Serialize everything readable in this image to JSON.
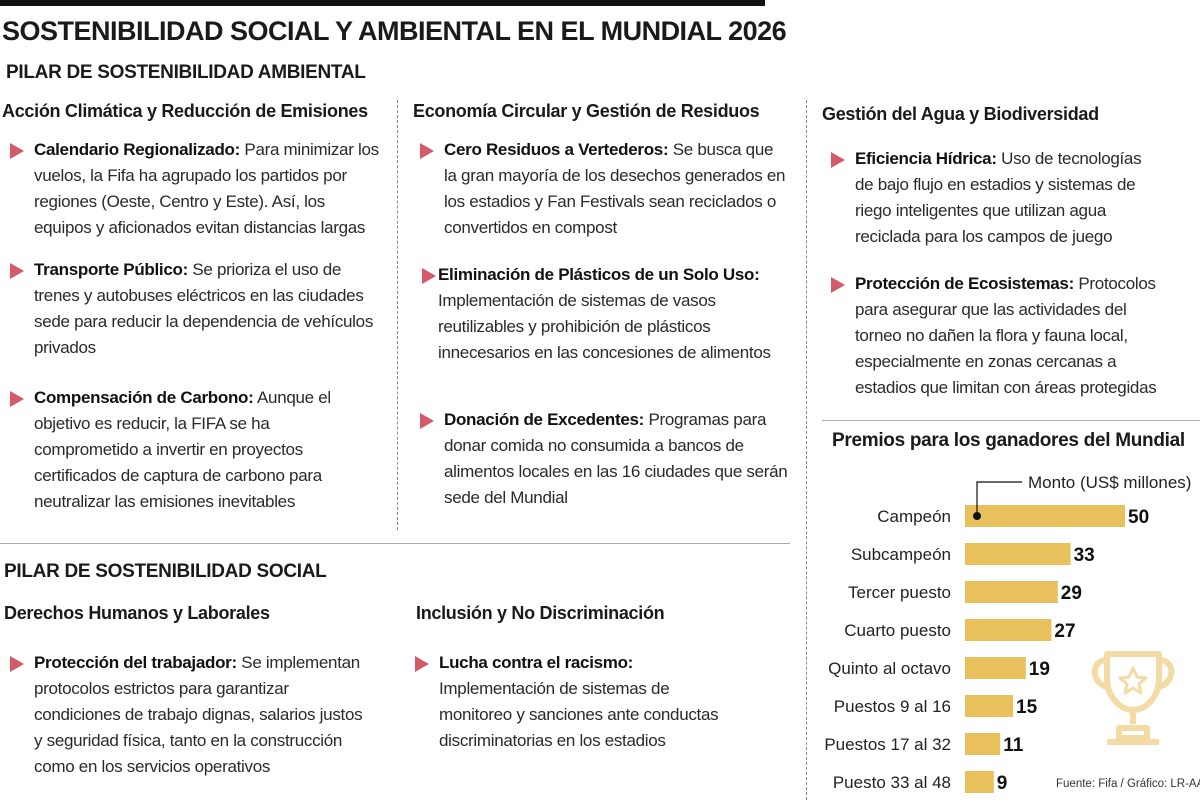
{
  "title": "SOSTENIBILIDAD SOCIAL Y AMBIENTAL EN EL MUNDIAL 2026",
  "environmental": {
    "pillar": "PILAR DE SOSTENIBILIDAD AMBIENTAL",
    "col1": {
      "title": "Acción Climática y Reducción de Emisiones",
      "items": [
        {
          "label": "Calendario Regionalizado:",
          "text": "Para minimizar los vuelos, la Fifa ha agrupado los partidos por regiones (Oeste, Centro y Este). Así, los equipos y aficionados evitan distancias largas"
        },
        {
          "label": "Transporte Público:",
          "text": "Se prioriza el uso de trenes y autobuses eléctricos en las ciudades sede para reducir la dependencia de vehículos privados"
        },
        {
          "label": "Compensación de Carbono:",
          "text": "Aunque el objetivo es reducir, la FIFA se ha comprometido a invertir en proyectos certificados de captura de carbono para neutralizar las emisiones inevitables"
        }
      ]
    },
    "col2": {
      "title": "Economía Circular y Gestión de Residuos",
      "items": [
        {
          "label": "Cero Residuos a Vertederos:",
          "text": "Se busca que la gran mayoría de los desechos generados en los estadios y Fan Festivals sean reciclados o convertidos en compost"
        },
        {
          "label": "Eliminación de Plásticos de un Solo Uso:",
          "text": "Implementación de sistemas de vasos reutilizables y prohibición de plásticos innecesarios en las concesiones de alimentos"
        },
        {
          "label": "Donación de Excedentes:",
          "text": "Programas para donar comida no consumida a bancos de alimentos locales en las 16 ciudades que serán sede del Mundial"
        }
      ]
    },
    "col3": {
      "title": "Gestión del Agua y Biodiversidad",
      "items": [
        {
          "label": "Eficiencia Hídrica:",
          "text": "Uso de tecnologías de bajo flujo en estadios y sistemas de riego inteligentes que utilizan agua reciclada para los campos de juego"
        },
        {
          "label": "Protección de Ecosistemas:",
          "text": "Protocolos para asegurar que las actividades del torneo no dañen la flora y fauna local, especialmente en zonas cercanas a estadios que limitan con áreas protegidas"
        }
      ]
    }
  },
  "social": {
    "pillar": "PILAR DE SOSTENIBILIDAD SOCIAL",
    "col1": {
      "title": "Derechos Humanos y Laborales",
      "items": [
        {
          "label": "Protección del trabajador:",
          "text": "Se implementan protocolos estrictos para garantizar condiciones de trabajo dignas, salarios justos y seguridad física, tanto en la construcción como en los servicios operativos"
        }
      ]
    },
    "col2": {
      "title": "Inclusión y No Discriminación",
      "items": [
        {
          "label": "Lucha contra el racismo:",
          "text": "Implementación de sistemas de monitoreo y sanciones ante conductas discriminatorias en los estadios"
        }
      ]
    }
  },
  "chart_title": "Premios para los ganadores del Mundial",
  "source": "Fuente: Fifa / Gráfico: LR-AA",
  "colors": {
    "bar": "#e8c15c",
    "bullet": "#d45a6a",
    "trophy": "#f3dca3"
  },
  "icons": [
    "triangle-bullet-icon",
    "trophy-icon"
  ],
  "chart_data": {
    "type": "bar",
    "orientation": "horizontal",
    "title": "Premios para los ganadores del Mundial",
    "series_label": "Monto (US$ millones)",
    "categories": [
      "Campeón",
      "Subcampeón",
      "Tercer puesto",
      "Cuarto puesto",
      "Quinto al octavo",
      "Puestos 9 al 16",
      "Puestos 17 al 32",
      "Puesto 33 al 48"
    ],
    "values": [
      50,
      33,
      29,
      27,
      19,
      15,
      11,
      9
    ],
    "xlim": [
      0,
      50
    ],
    "grid": false
  }
}
